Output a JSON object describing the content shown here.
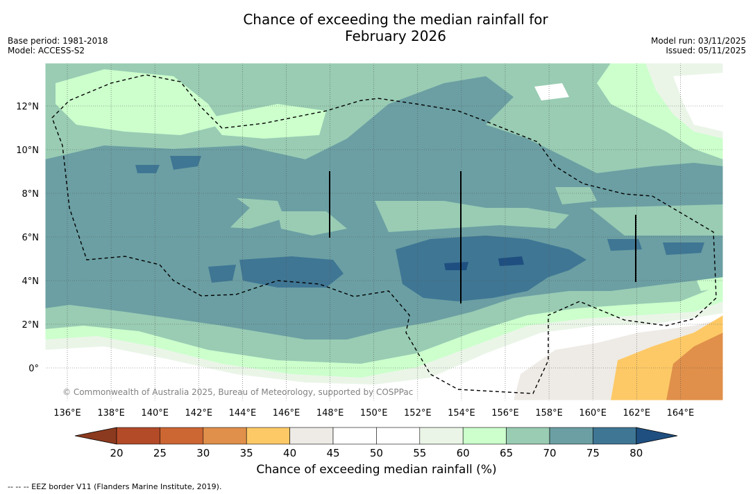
{
  "title": {
    "line1": "Chance of exceeding the median rainfall for",
    "line2": "February 2026"
  },
  "meta_left": {
    "line1": "Base period: 1981-2018",
    "line2": "Model: ACCESS-S2"
  },
  "meta_right": {
    "line1": "Model run: 03/11/2025",
    "line2": "Issued: 05/11/2025"
  },
  "map": {
    "copyright": "© Commonwealth of Australia 2025, Bureau of Meteorology, supported by COSPPac",
    "lon_labels": [
      "136°E",
      "138°E",
      "140°E",
      "142°E",
      "144°E",
      "146°E",
      "148°E",
      "150°E",
      "152°E",
      "154°E",
      "156°E",
      "158°E",
      "160°E",
      "162°E",
      "164°E"
    ],
    "lat_labels": [
      "12°N",
      "10°N",
      "8°N",
      "6°N",
      "4°N",
      "2°N",
      "0°"
    ]
  },
  "colorbar": {
    "title": "Chance of exceeding median rainfall (%)",
    "ticks": [
      "20",
      "25",
      "30",
      "35",
      "40",
      "45",
      "50",
      "55",
      "60",
      "65",
      "70",
      "75",
      "80"
    ],
    "colors": {
      "below": "#8c3a1f",
      "bins": [
        "#b34a28",
        "#cc6633",
        "#e0904a",
        "#fdc966",
        "#eeebe6",
        "#ffffff",
        "#ffffff",
        "#eaf5e8",
        "#ccffcc",
        "#99ccb3",
        "#6b9fa3",
        "#3f7694"
      ],
      "above": "#1f4f80"
    }
  },
  "footer": "--  --  -- EEZ border V11 (Flanders Marine Institute, 2019)."
}
